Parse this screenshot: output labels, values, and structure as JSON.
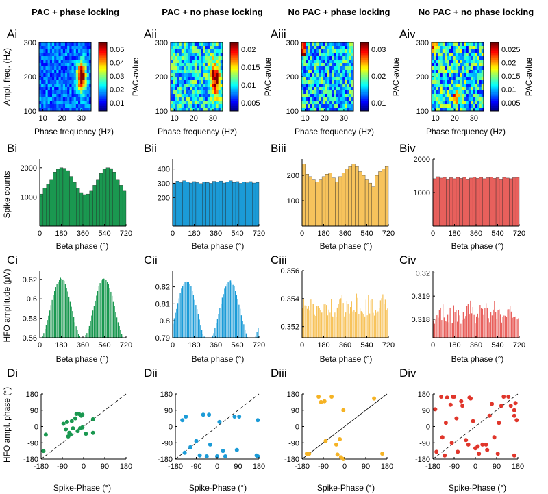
{
  "column_titles": [
    "PAC + phase locking",
    "PAC + no phase locking",
    "No PAC + phase locking",
    "No PAC + no phase locking"
  ],
  "panel_labels": {
    "A": [
      "Ai",
      "Aii",
      "Aiii",
      "Aiv"
    ],
    "B": [
      "Bi",
      "Bii",
      "Biii",
      "Biv"
    ],
    "C": [
      "Ci",
      "Cii",
      "Ciii",
      "Civ"
    ],
    "D": [
      "Di",
      "Dii",
      "Diii",
      "Div"
    ]
  },
  "colors": {
    "green": "#1a9850",
    "blue": "#1b9bd7",
    "yellow": "#f7c35c",
    "red": "#e8605c",
    "d_yellow": "#f5b325",
    "d_red": "#e0362b"
  },
  "chart_data": [
    {
      "type": "heatmap",
      "row": "A",
      "columns": 4,
      "xlabel": "Phase frequency (Hz)",
      "ylabel": "Ampl. freq. (Hz)",
      "colorbar_label": "PAC-avlue",
      "x_ticks": [
        "10",
        "20",
        "30"
      ],
      "y_ticks": [
        "100",
        "200",
        "300"
      ],
      "xlim": [
        8,
        35
      ],
      "ylim": [
        100,
        300
      ],
      "hotspots": [
        {
          "pf": 30,
          "af": 200,
          "strength": 1.0,
          "sx": 1.6,
          "sy": 40
        },
        {
          "pf": 31,
          "af": 190,
          "strength": 0.8,
          "sx": 2.5,
          "sy": 60
        },
        {
          "pf": 8,
          "af": 200,
          "strength": 0.05,
          "sx": 0,
          "sy": 0
        },
        {
          "pf": 20,
          "af": 140,
          "strength": 0.9,
          "sx": 1.2,
          "sy": 25
        }
      ],
      "colorbar_ticks": [
        [
          "0.05",
          "0.04",
          "0.03",
          "0.02",
          "0.01"
        ],
        [
          "0.02",
          "0.015",
          "0.01",
          "0.005"
        ],
        [
          "0.03",
          "0.02",
          "0.01"
        ],
        [
          "0.025",
          "0.02",
          "0.015",
          "0.01",
          "0.005"
        ]
      ]
    },
    {
      "type": "bar",
      "row": "B",
      "xlabel": "Beta phase (°)",
      "ylabel": "Spike counts",
      "x_ticks": [
        "0",
        "180",
        "360",
        "540",
        "720"
      ],
      "panels": [
        {
          "y_ticks": [
            "1000",
            "2000"
          ],
          "ylim": [
            0,
            2300
          ],
          "values": [
            1100,
            1300,
            1450,
            1600,
            1850,
            1950,
            2000,
            1980,
            1900,
            1700,
            1500,
            1300,
            1150,
            1080,
            1100,
            1200,
            1400,
            1600,
            1800,
            1950,
            2000,
            1970,
            1850,
            1600,
            1400,
            1200
          ]
        },
        {
          "y_ticks": [
            "200",
            "300",
            "400"
          ],
          "ylim": [
            0,
            470
          ],
          "values": [
            300,
            315,
            305,
            318,
            310,
            302,
            312,
            305,
            298,
            310,
            306,
            300,
            314,
            308,
            316,
            302,
            310,
            318,
            306,
            312,
            300,
            310,
            304,
            312,
            302,
            306
          ]
        },
        {
          "y_ticks": [
            "100",
            "200"
          ],
          "ylim": [
            0,
            265
          ],
          "values": [
            245,
            205,
            195,
            185,
            175,
            185,
            195,
            205,
            210,
            190,
            175,
            195,
            210,
            225,
            235,
            245,
            235,
            215,
            200,
            185,
            170,
            155,
            200,
            215,
            225,
            235
          ]
        },
        {
          "y_ticks": [
            "1000",
            "2000"
          ],
          "ylim": [
            0,
            2000
          ],
          "values": [
            1410,
            1470,
            1430,
            1450,
            1400,
            1440,
            1410,
            1450,
            1420,
            1450,
            1400,
            1430,
            1460,
            1420,
            1450,
            1410,
            1440,
            1460,
            1420,
            1440,
            1400,
            1450,
            1430,
            1410,
            1440,
            1450
          ]
        }
      ]
    },
    {
      "type": "bar",
      "row": "C",
      "xlabel": "Beta phase (°)",
      "ylabel": "HFO amplitude (μV)",
      "x_ticks": [
        "0",
        "180",
        "360",
        "540",
        "720"
      ],
      "panels": [
        {
          "y_ticks": [
            "0.56",
            "0.58",
            "0.6",
            "0.62"
          ],
          "ylim": [
            0.56,
            0.629
          ],
          "wave": {
            "base": 0.59,
            "amp": 0.031,
            "periods": 2,
            "phase": 1.55,
            "noise": 0.0015
          }
        },
        {
          "y_ticks": [
            "0.79",
            "0.8",
            "0.81",
            "0.82"
          ],
          "ylim": [
            0.79,
            0.8295
          ],
          "wave": {
            "base": 0.8055,
            "amp": 0.018,
            "periods": 2,
            "phase": 0.5,
            "noise": 0.001
          }
        },
        {
          "y_ticks": [
            "0.352",
            "0.354",
            "0.356"
          ],
          "ylim": [
            0.3512,
            0.356
          ],
          "wave": {
            "base": 0.3527,
            "amp": 0.0,
            "periods": 2,
            "phase": 0,
            "noise": 0.0017
          }
        },
        {
          "y_ticks": [
            "0.318",
            "0.319",
            "0.32"
          ],
          "ylim": [
            0.3172,
            0.3201
          ],
          "wave": {
            "base": 0.3178,
            "amp": 0.0,
            "periods": 2,
            "phase": 0,
            "noise": 0.0011
          }
        }
      ]
    },
    {
      "type": "scatter",
      "row": "D",
      "xlabel": "Spike-Phase (°)",
      "ylabel": "HFO ampl. phase (°)",
      "x_ticks": [
        "-180",
        "-90",
        "0",
        "90",
        "180"
      ],
      "y_ticks": [
        "180",
        "90",
        "0",
        "-90",
        "-180"
      ],
      "xlim": [
        -180,
        180
      ],
      "ylim": [
        -180,
        180
      ],
      "panels": [
        {
          "line": "dashed",
          "points": [
            [
              -170,
              -135
            ],
            [
              -160,
              -45
            ],
            [
              -85,
              15
            ],
            [
              -75,
              -15
            ],
            [
              -70,
              25
            ],
            [
              -65,
              -55
            ],
            [
              -60,
              -35
            ],
            [
              -55,
              -45
            ],
            [
              -50,
              30
            ],
            [
              -45,
              -10
            ],
            [
              -35,
              45
            ],
            [
              -30,
              70
            ],
            [
              -25,
              -25
            ],
            [
              -20,
              70
            ],
            [
              -15,
              -10
            ],
            [
              -10,
              60
            ],
            [
              -5,
              65
            ],
            [
              -5,
              -5
            ],
            [
              10,
              -40
            ],
            [
              40,
              40
            ],
            [
              40,
              -35
            ]
          ]
        },
        {
          "line": "dashed",
          "points": [
            [
              -150,
              35
            ],
            [
              -140,
              -145
            ],
            [
              -135,
              55
            ],
            [
              -115,
              -115
            ],
            [
              -90,
              -80
            ],
            [
              -75,
              -160
            ],
            [
              -60,
              65
            ],
            [
              -45,
              -165
            ],
            [
              -35,
              65
            ],
            [
              -30,
              -100
            ],
            [
              0,
              -165
            ],
            [
              10,
              25
            ],
            [
              25,
              -135
            ],
            [
              35,
              -165
            ],
            [
              75,
              55
            ],
            [
              85,
              -130
            ],
            [
              95,
              55
            ],
            [
              175,
              35
            ],
            [
              170,
              -160
            ],
            [
              175,
              -165
            ]
          ]
        },
        {
          "line": "solid",
          "points": [
            [
              -160,
              -150
            ],
            [
              -150,
              -150
            ],
            [
              -110,
              165
            ],
            [
              -100,
              135
            ],
            [
              -85,
              140
            ],
            [
              -80,
              -80
            ],
            [
              -55,
              165
            ],
            [
              -35,
              -100
            ],
            [
              -30,
              -155
            ],
            [
              -20,
              -70
            ],
            [
              -15,
              -170
            ],
            [
              -5,
              90
            ],
            [
              -5,
              -180
            ],
            [
              125,
              155
            ],
            [
              160,
              -150
            ]
          ]
        },
        {
          "line": "dashed",
          "points": [
            [
              -165,
              -140
            ],
            [
              -170,
              95
            ],
            [
              -145,
              165
            ],
            [
              -140,
              -60
            ],
            [
              -130,
              -160
            ],
            [
              -125,
              20
            ],
            [
              -120,
              160
            ],
            [
              -105,
              120
            ],
            [
              -100,
              -90
            ],
            [
              -95,
              165
            ],
            [
              -90,
              165
            ],
            [
              -80,
              45
            ],
            [
              -75,
              -140
            ],
            [
              -60,
              140
            ],
            [
              -55,
              115
            ],
            [
              -40,
              -75
            ],
            [
              -30,
              -100
            ],
            [
              -25,
              160
            ],
            [
              -20,
              155
            ],
            [
              -10,
              30
            ],
            [
              0,
              -120
            ],
            [
              10,
              -110
            ],
            [
              15,
              -150
            ],
            [
              30,
              -100
            ],
            [
              45,
              -100
            ],
            [
              50,
              -130
            ],
            [
              60,
              60
            ],
            [
              70,
              125
            ],
            [
              80,
              -60
            ],
            [
              95,
              -150
            ],
            [
              100,
              20
            ],
            [
              110,
              115
            ],
            [
              120,
              165
            ],
            [
              140,
              165
            ],
            [
              150,
              115
            ],
            [
              165,
              60
            ],
            [
              170,
              130
            ],
            [
              165,
              90
            ],
            [
              175,
              35
            ],
            [
              165,
              -160
            ]
          ]
        }
      ]
    }
  ]
}
